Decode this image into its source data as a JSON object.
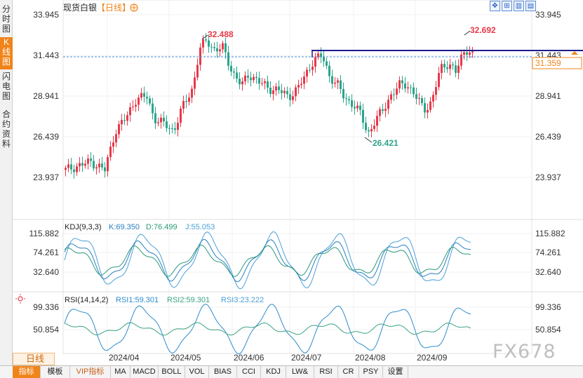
{
  "side_tabs": [
    "分时图",
    "K线图",
    "闪电图",
    "合约资料"
  ],
  "active_side_tab": 1,
  "header": {
    "name": "现货白银",
    "period_tag": "【日线】",
    "settings_icon": "gear-circle-icon"
  },
  "toolbar_icons": [
    "pan-icon",
    "zoom-fit-icon",
    "zoom-in-icon",
    "zoom-out-icon"
  ],
  "price_axis": {
    "ticks": [
      "33.945",
      "31.443",
      "28.941",
      "26.439",
      "23.937"
    ],
    "values": [
      33.945,
      31.443,
      28.941,
      26.439,
      23.937
    ],
    "current_price": "31.359",
    "current_value": 31.359
  },
  "annotations": {
    "high_left": "32.488",
    "high_right": "32.692",
    "low": "26.421"
  },
  "kdj": {
    "label": "KDJ(9,3,3)",
    "k": "K:69.350",
    "d": "D:76.499",
    "j": "J:55.053",
    "ticks": [
      "115.882",
      "74.261",
      "32.640"
    ],
    "values": [
      115.882,
      74.261,
      32.64
    ]
  },
  "rsi": {
    "label": "RSI(14,14,2)",
    "rsi1": "RSI1:59.301",
    "rsi2": "RSI2:59.301",
    "rsi3": "RSI3:23.222",
    "ticks": [
      "99.336",
      "50.854"
    ],
    "values": [
      99.336,
      50.854
    ]
  },
  "x_axis": {
    "labels": [
      "2024/04",
      "2024/05",
      "2024/06",
      "2024/07",
      "2024/08",
      "2024/09"
    ]
  },
  "period_label": "日线",
  "bottom_tabs": [
    "指标",
    "模板",
    "VIP指标",
    "MA",
    "MACD",
    "BOLL",
    "VOL",
    "BIAS",
    "CCI",
    "KDJ",
    "LW&",
    "RSI",
    "CR",
    "PSY",
    "设置"
  ],
  "active_bottom_tab": 0,
  "watermark": "FX678",
  "colors": {
    "up": "#e8394a",
    "down": "#2aa58a",
    "accent": "#f0841a",
    "hline": "#1d1a8c",
    "kdj_k": "#2a7fc0",
    "kdj_d": "#2a9a78",
    "kdj_j": "#4aa0d8",
    "rsi1": "#2e8ccc",
    "rsi2": "#3aa382"
  },
  "chart_data": {
    "type": "candlestick",
    "frequency": "daily",
    "x_range": [
      "2024/03",
      "2024/09"
    ],
    "price": {
      "ylim": [
        23.937,
        33.945
      ],
      "high_mark": 32.692,
      "prior_high_mark": 32.488,
      "low_mark": 26.421,
      "last_close": 31.359
    },
    "kdj": {
      "K": 69.35,
      "D": 76.499,
      "J": 55.053
    },
    "rsi": {
      "RSI1": 59.301,
      "RSI2": 59.301,
      "RSI3": 23.222
    }
  }
}
